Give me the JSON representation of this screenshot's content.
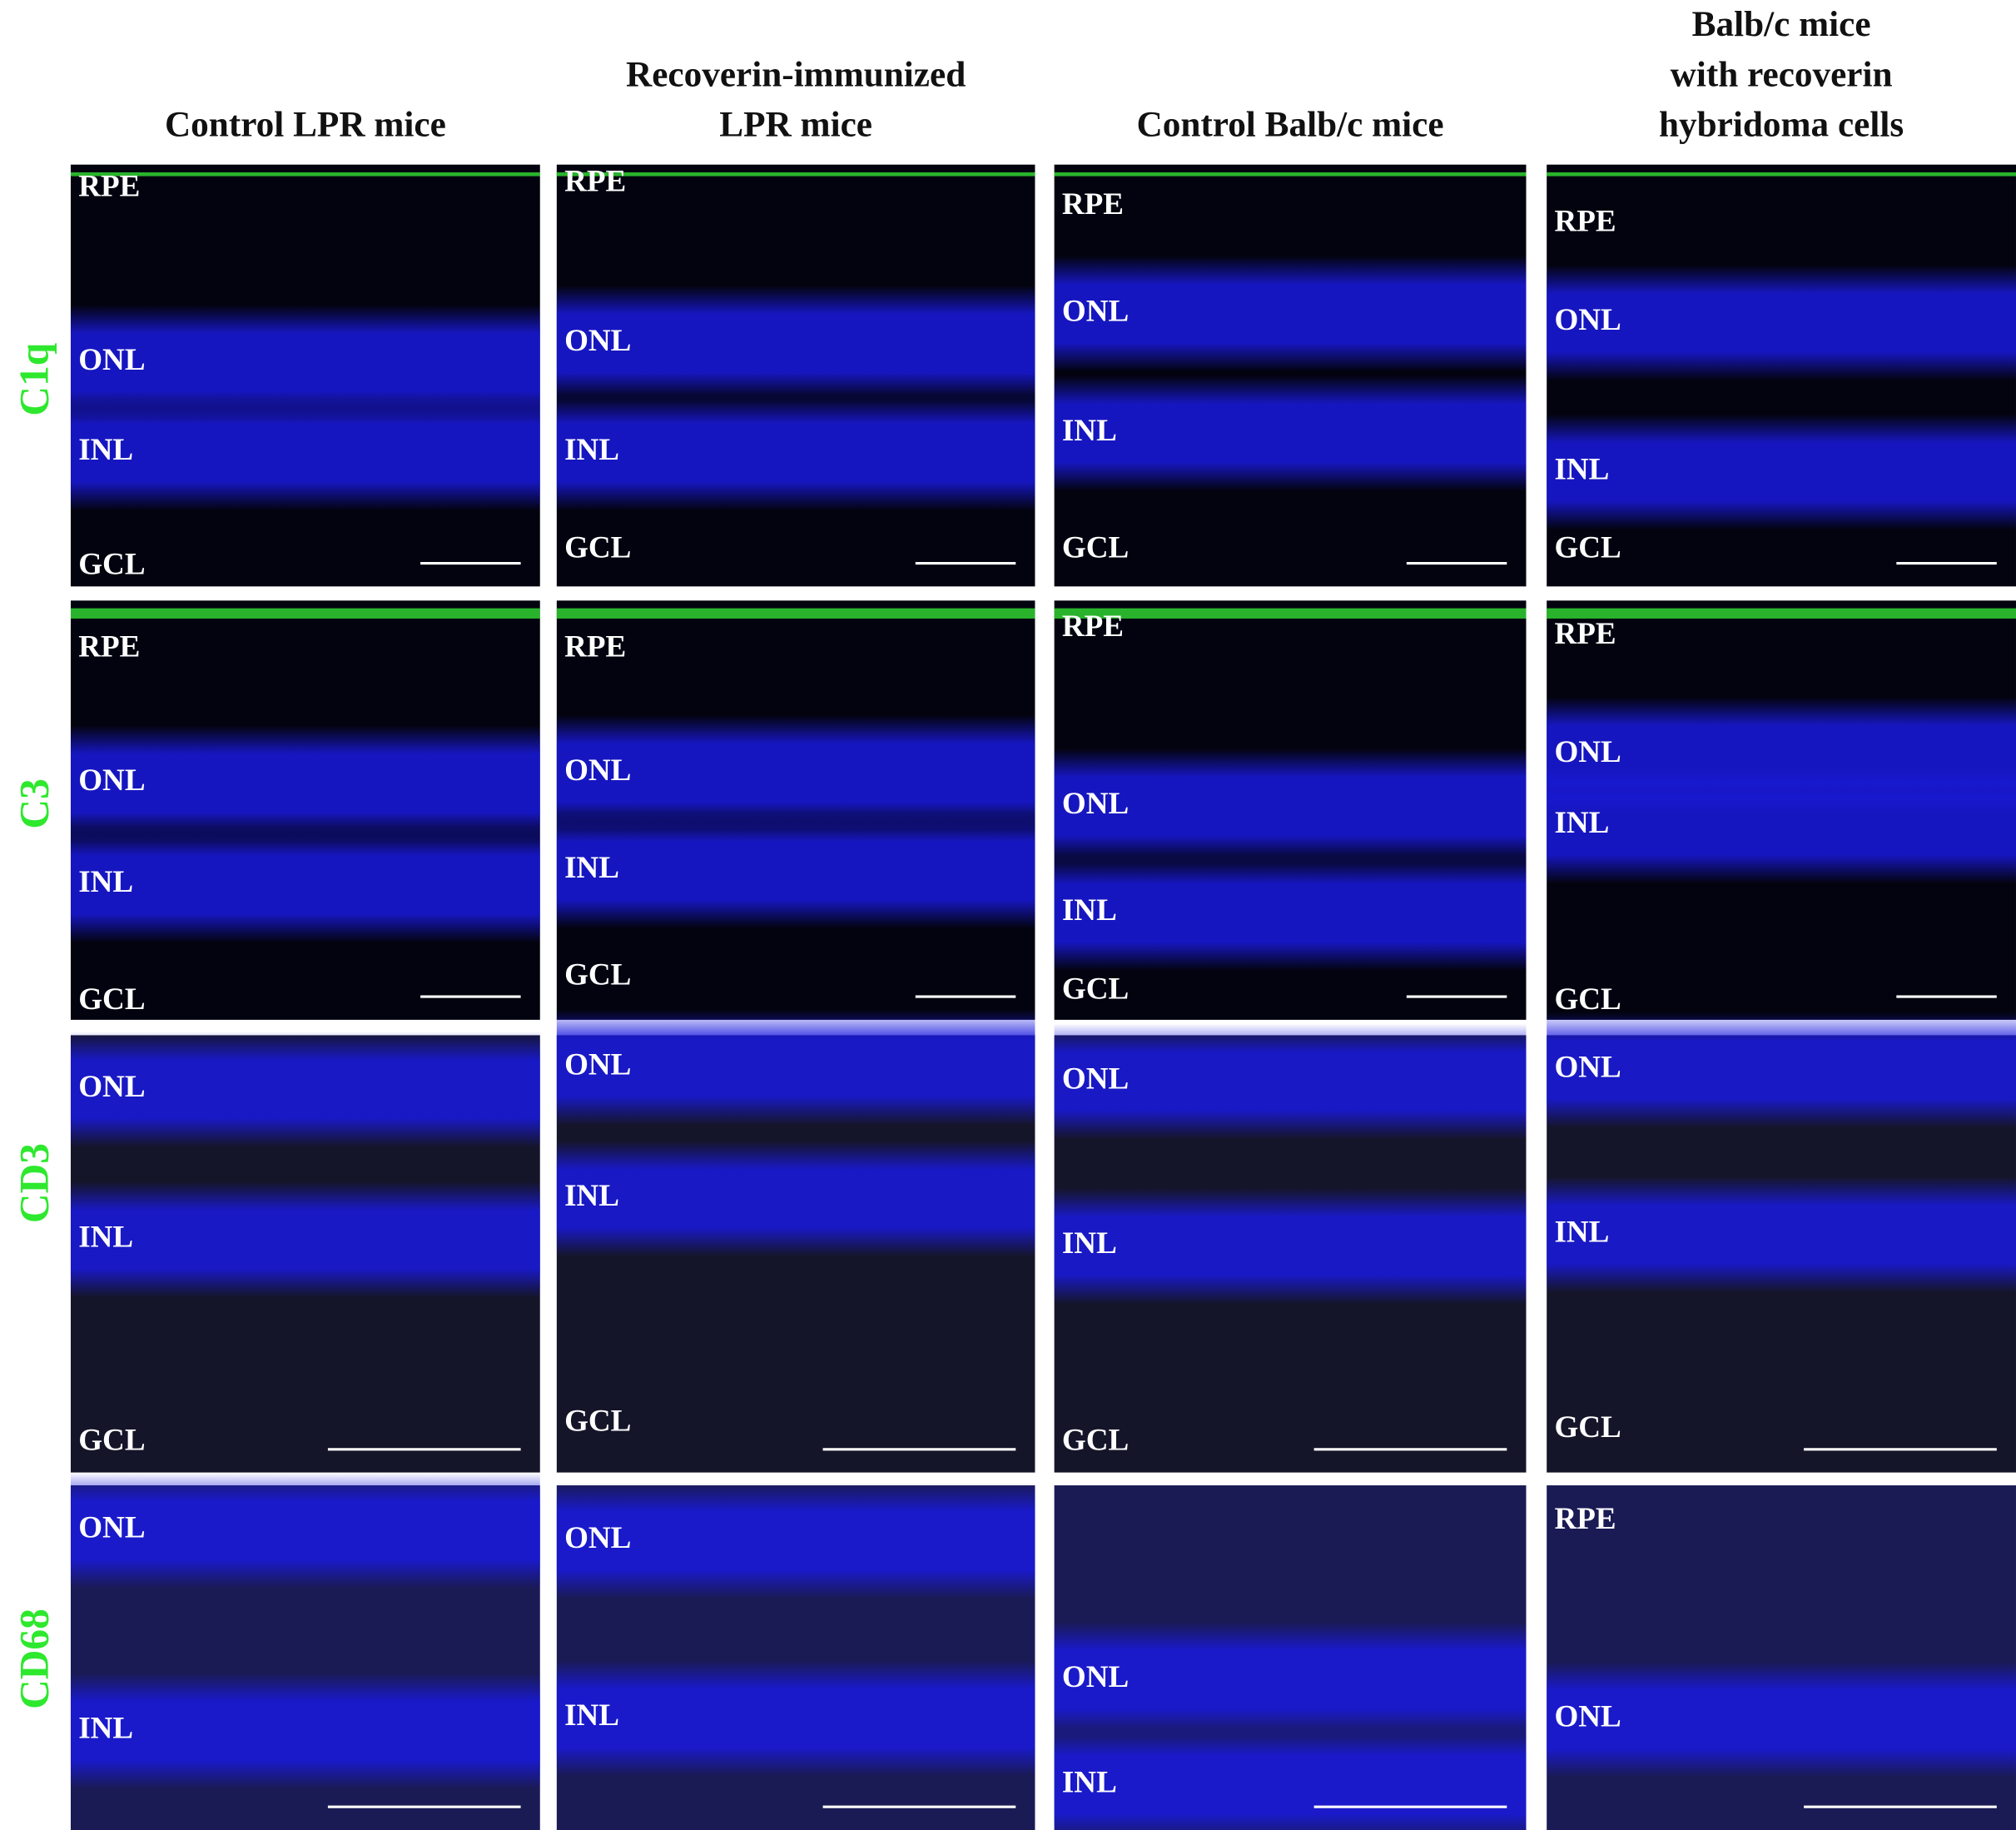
{
  "figure": {
    "columns": [
      {
        "lines": [
          "Control LPR mice"
        ]
      },
      {
        "lines": [
          "Recoverin-immunized",
          "LPR mice"
        ]
      },
      {
        "lines": [
          "Control Balb/c mice"
        ]
      },
      {
        "lines": [
          "Balb/c mice",
          "with recoverin",
          "hybridoma cells"
        ]
      }
    ],
    "rows": [
      {
        "label": "C1q",
        "panels": [
          {
            "layers": [
              "RPE",
              "ONL",
              "INL",
              "GCL"
            ]
          },
          {
            "layers": [
              "RPE",
              "ONL",
              "INL",
              "GCL"
            ]
          },
          {
            "layers": [
              "RPE",
              "ONL",
              "INL",
              "GCL"
            ]
          },
          {
            "layers": [
              "RPE",
              "ONL",
              "INL",
              "GCL"
            ]
          }
        ]
      },
      {
        "label": "C3",
        "panels": [
          {
            "layers": [
              "RPE",
              "ONL",
              "INL",
              "GCL"
            ]
          },
          {
            "layers": [
              "RPE",
              "ONL",
              "INL",
              "GCL"
            ]
          },
          {
            "layers": [
              "RPE",
              "ONL",
              "INL",
              "GCL"
            ]
          },
          {
            "layers": [
              "RPE",
              "ONL",
              "INL",
              "GCL"
            ]
          }
        ]
      },
      {
        "label": "CD3",
        "panels": [
          {
            "layers": [
              "ONL",
              "INL",
              "GCL"
            ]
          },
          {
            "layers": [
              "ONL",
              "INL",
              "GCL"
            ]
          },
          {
            "layers": [
              "ONL",
              "INL",
              "GCL"
            ]
          },
          {
            "layers": [
              "ONL",
              "INL",
              "GCL"
            ]
          }
        ]
      },
      {
        "label": "CD68",
        "panels": [
          {
            "layers": [
              "ONL",
              "INL"
            ]
          },
          {
            "layers": [
              "ONL",
              "INL"
            ]
          },
          {
            "layers": [
              "ONL",
              "INL"
            ]
          },
          {
            "layers": [
              "RPE",
              "ONL"
            ]
          }
        ]
      }
    ]
  }
}
